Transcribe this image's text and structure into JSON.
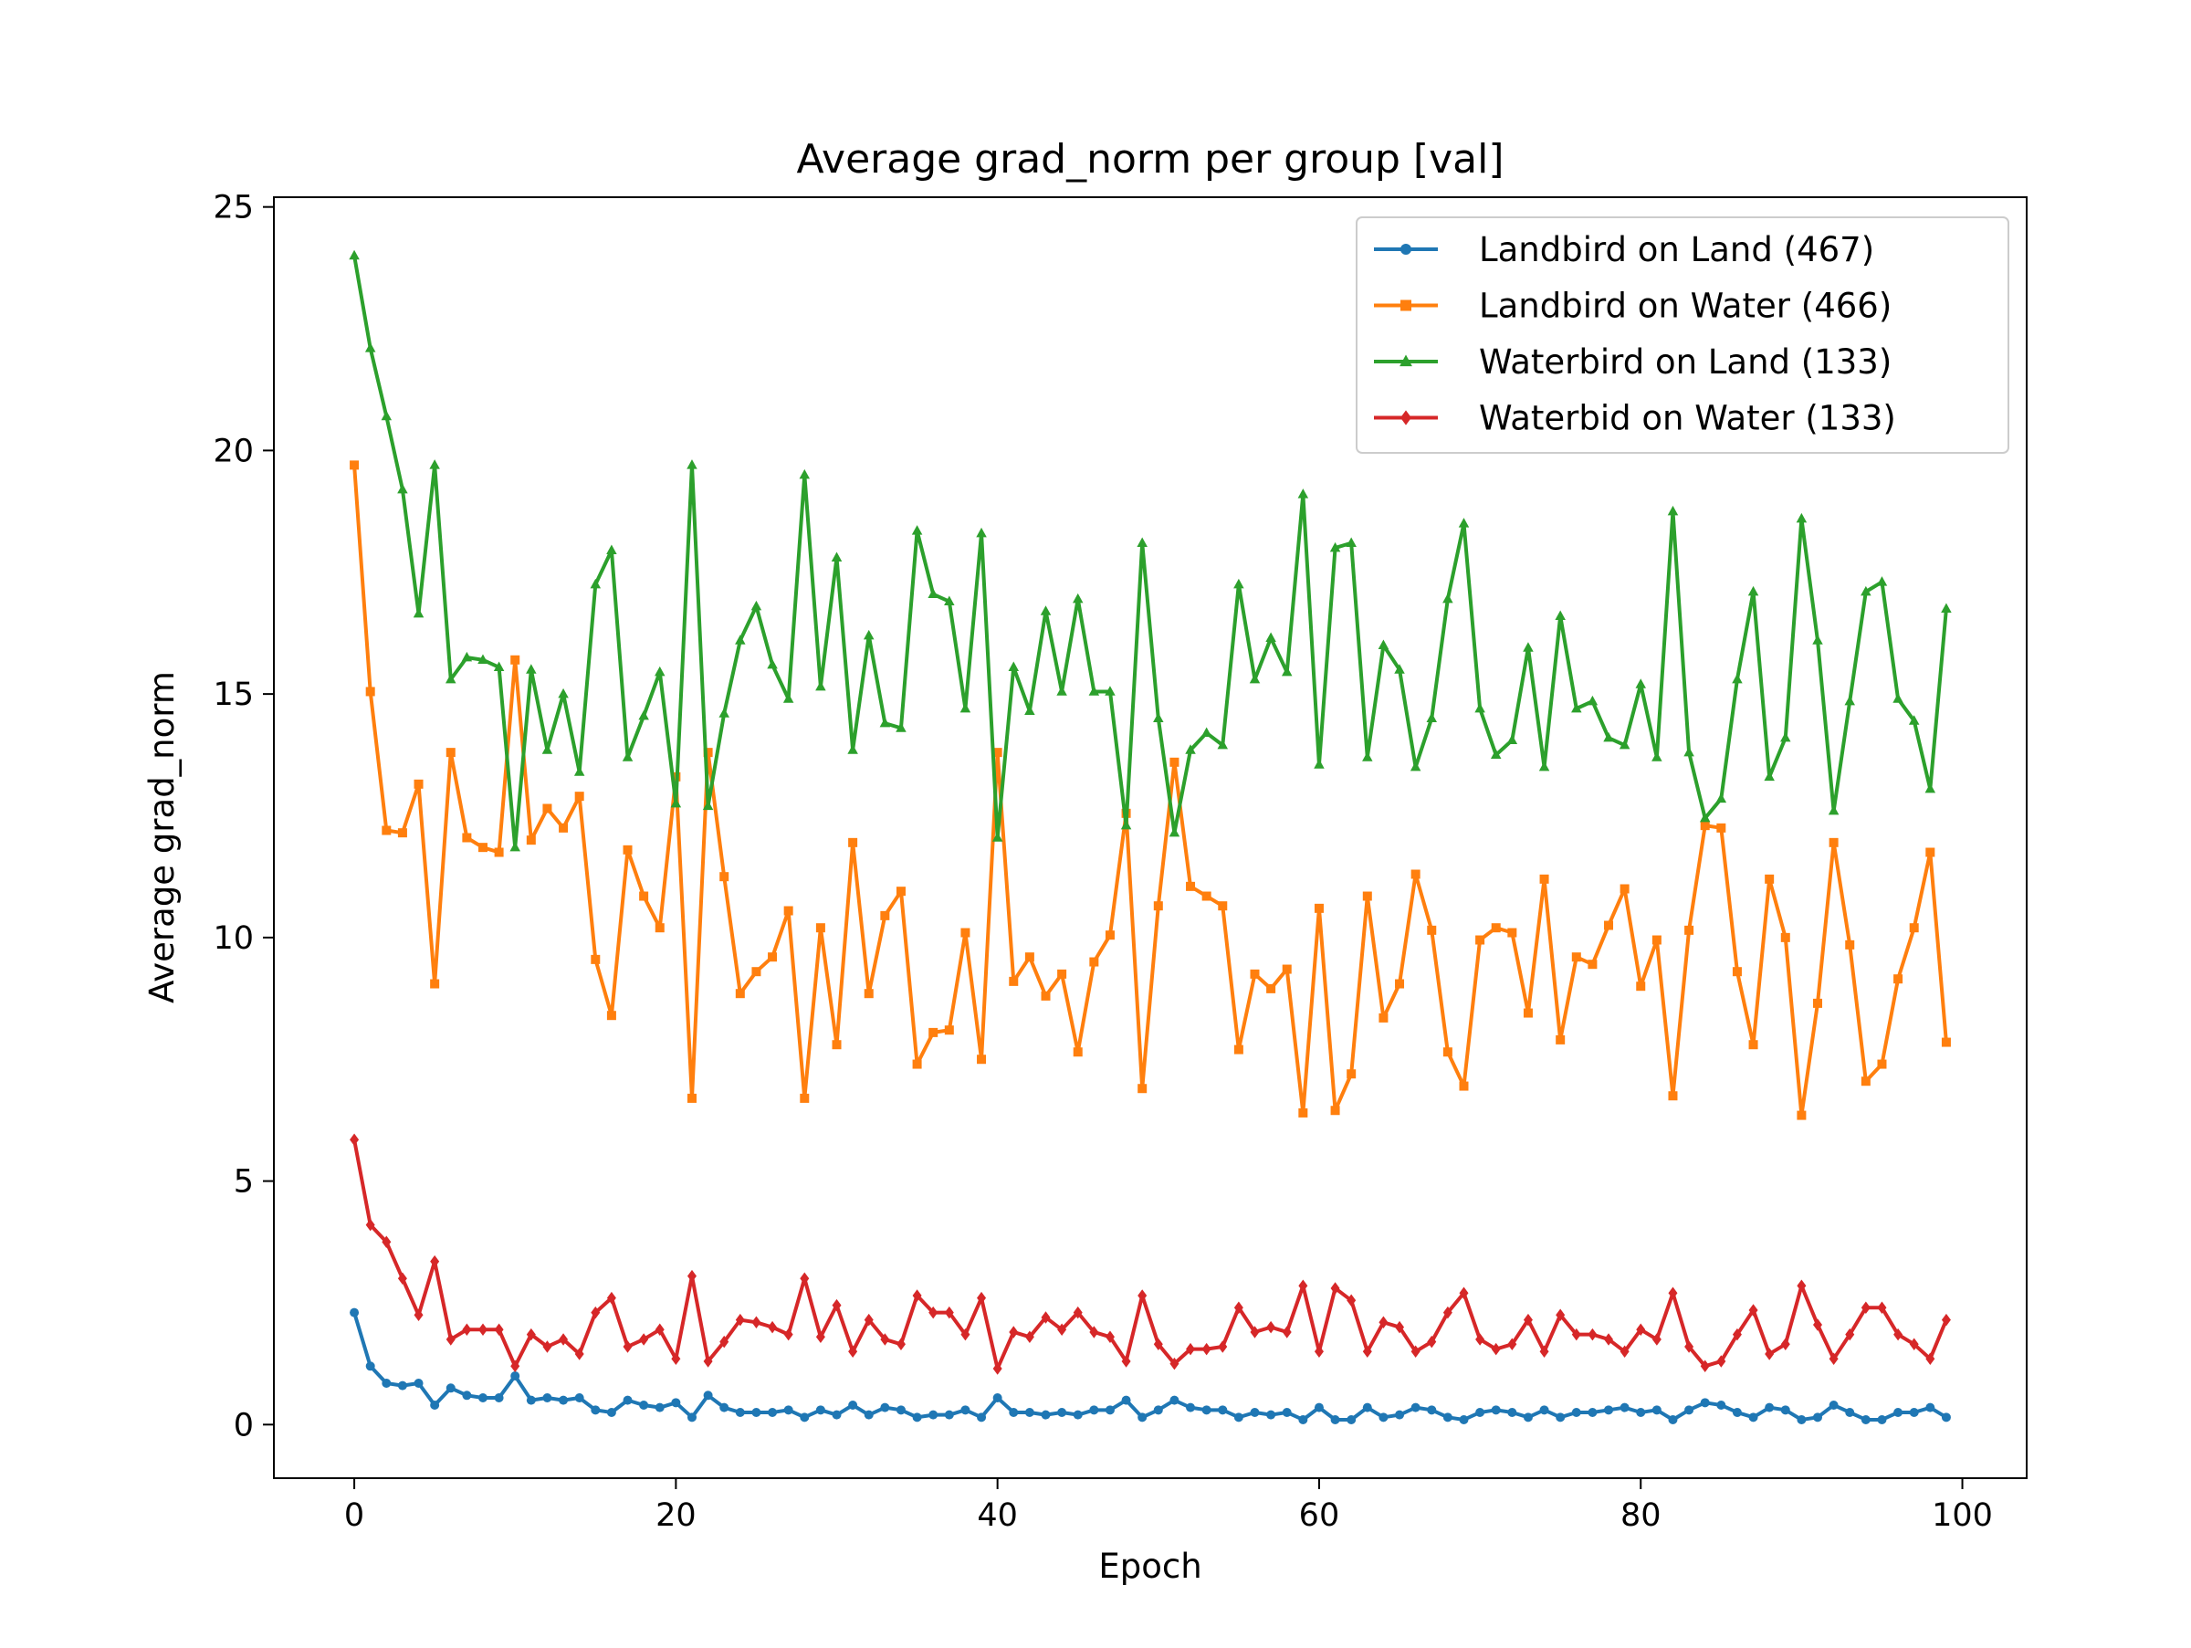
{
  "chart_data": {
    "type": "line",
    "title": "Average grad_norm per group [val]",
    "xlabel": "Epoch",
    "ylabel": "Average grad_norm",
    "xlim": [
      -5,
      104
    ],
    "ylim": [
      -1.1,
      25.2
    ],
    "xticks": [
      0,
      20,
      40,
      60,
      80,
      100
    ],
    "yticks": [
      0,
      5,
      10,
      15,
      20,
      25
    ],
    "xtick_labels": [
      "0",
      "20",
      "40",
      "60",
      "80",
      "100"
    ],
    "ytick_labels": [
      "0",
      "5",
      "10",
      "15",
      "20",
      "25"
    ],
    "grid": false,
    "legend_position": "top-right",
    "x": [
      0,
      1,
      2,
      3,
      4,
      5,
      6,
      7,
      8,
      9,
      10,
      11,
      12,
      13,
      14,
      15,
      16,
      17,
      18,
      19,
      20,
      21,
      22,
      23,
      24,
      25,
      26,
      27,
      28,
      29,
      30,
      31,
      32,
      33,
      34,
      35,
      36,
      37,
      38,
      39,
      40,
      41,
      42,
      43,
      44,
      45,
      46,
      47,
      48,
      49,
      50,
      51,
      52,
      53,
      54,
      55,
      56,
      57,
      58,
      59,
      60,
      61,
      62,
      63,
      64,
      65,
      66,
      67,
      68,
      69,
      70,
      71,
      72,
      73,
      74,
      75,
      76,
      77,
      78,
      79,
      80,
      81,
      82,
      83,
      84,
      85,
      86,
      87,
      88,
      89,
      90,
      91,
      92,
      93,
      94,
      95,
      96,
      97,
      98,
      99
    ],
    "series": [
      {
        "name": "Landbird on Land (467)",
        "color": "#1f77b4",
        "marker": "circle",
        "values": [
          2.3,
          1.2,
          0.85,
          0.8,
          0.85,
          0.4,
          0.75,
          0.6,
          0.55,
          0.55,
          1.0,
          0.5,
          0.55,
          0.5,
          0.55,
          0.3,
          0.25,
          0.5,
          0.4,
          0.35,
          0.45,
          0.15,
          0.6,
          0.35,
          0.25,
          0.25,
          0.25,
          0.3,
          0.15,
          0.3,
          0.2,
          0.4,
          0.2,
          0.35,
          0.3,
          0.15,
          0.2,
          0.2,
          0.3,
          0.15,
          0.55,
          0.25,
          0.25,
          0.2,
          0.25,
          0.2,
          0.3,
          0.3,
          0.5,
          0.15,
          0.3,
          0.5,
          0.35,
          0.3,
          0.3,
          0.15,
          0.25,
          0.2,
          0.25,
          0.1,
          0.35,
          0.1,
          0.1,
          0.35,
          0.15,
          0.2,
          0.35,
          0.3,
          0.15,
          0.1,
          0.25,
          0.3,
          0.25,
          0.15,
          0.3,
          0.15,
          0.25,
          0.25,
          0.3,
          0.35,
          0.25,
          0.3,
          0.1,
          0.3,
          0.45,
          0.4,
          0.25,
          0.15,
          0.35,
          0.3,
          0.1,
          0.15,
          0.4,
          0.25,
          0.1,
          0.1,
          0.25,
          0.25,
          0.35,
          0.15
        ]
      },
      {
        "name": "Landbird on Water (466)",
        "color": "#ff7f0e",
        "marker": "square",
        "values": [
          19.7,
          15.05,
          12.2,
          12.15,
          13.15,
          9.05,
          13.8,
          12.05,
          11.85,
          11.75,
          15.7,
          12.0,
          12.65,
          12.25,
          12.9,
          9.55,
          8.4,
          11.8,
          10.85,
          10.2,
          13.3,
          6.7,
          13.8,
          11.25,
          8.85,
          9.3,
          9.6,
          10.55,
          6.7,
          10.2,
          7.8,
          11.95,
          8.85,
          10.45,
          10.95,
          7.4,
          8.05,
          8.1,
          10.1,
          7.5,
          13.8,
          9.1,
          9.6,
          8.8,
          9.25,
          7.65,
          9.5,
          10.05,
          12.55,
          6.9,
          10.65,
          13.6,
          11.05,
          10.85,
          10.65,
          7.7,
          9.25,
          8.95,
          9.35,
          6.4,
          10.6,
          6.45,
          7.2,
          10.85,
          8.35,
          9.05,
          11.3,
          10.15,
          7.65,
          6.95,
          9.95,
          10.2,
          10.1,
          8.45,
          11.2,
          7.9,
          9.6,
          9.45,
          10.25,
          11.0,
          9.0,
          9.95,
          6.75,
          10.15,
          12.3,
          12.25,
          9.3,
          7.8,
          11.2,
          10.0,
          6.35,
          8.65,
          11.95,
          9.85,
          7.05,
          7.4,
          9.15,
          10.2,
          11.75,
          7.85
        ]
      },
      {
        "name": "Waterbird on Land (133)",
        "color": "#2ca02c",
        "marker": "triangle",
        "values": [
          24.0,
          22.1,
          20.7,
          19.2,
          16.65,
          19.7,
          15.3,
          15.75,
          15.7,
          15.55,
          11.85,
          15.5,
          13.85,
          15.0,
          13.4,
          17.25,
          17.95,
          13.7,
          14.55,
          15.45,
          12.75,
          19.7,
          12.7,
          14.6,
          16.1,
          16.8,
          15.6,
          14.9,
          19.5,
          15.15,
          17.8,
          13.85,
          16.2,
          14.4,
          14.3,
          18.35,
          17.05,
          16.9,
          14.7,
          18.3,
          12.05,
          15.55,
          14.65,
          16.7,
          15.05,
          16.95,
          15.05,
          15.05,
          12.3,
          18.1,
          14.5,
          12.15,
          13.85,
          14.2,
          13.95,
          17.25,
          15.3,
          16.15,
          15.45,
          19.1,
          13.55,
          18.0,
          18.1,
          13.7,
          16.0,
          15.5,
          13.5,
          14.5,
          16.95,
          18.5,
          14.7,
          13.75,
          14.05,
          15.95,
          13.5,
          16.6,
          14.7,
          14.85,
          14.1,
          13.95,
          15.2,
          13.7,
          18.75,
          13.8,
          12.45,
          12.85,
          15.3,
          17.1,
          13.3,
          14.1,
          18.6,
          16.1,
          12.6,
          14.85,
          17.1,
          17.3,
          14.9,
          14.45,
          13.05,
          16.75
        ]
      },
      {
        "name": "Waterbid on Water (133)",
        "color": "#d62728",
        "marker": "diamond",
        "values": [
          5.85,
          4.1,
          3.75,
          3.0,
          2.25,
          3.35,
          1.75,
          1.95,
          1.95,
          1.95,
          1.2,
          1.85,
          1.6,
          1.75,
          1.45,
          2.3,
          2.6,
          1.6,
          1.75,
          1.95,
          1.35,
          3.05,
          1.3,
          1.7,
          2.15,
          2.1,
          2.0,
          1.85,
          3.0,
          1.8,
          2.45,
          1.5,
          2.15,
          1.75,
          1.65,
          2.65,
          2.3,
          2.3,
          1.85,
          2.6,
          1.15,
          1.9,
          1.8,
          2.2,
          1.95,
          2.3,
          1.9,
          1.8,
          1.3,
          2.65,
          1.65,
          1.25,
          1.55,
          1.55,
          1.6,
          2.4,
          1.9,
          2.0,
          1.9,
          2.85,
          1.5,
          2.8,
          2.55,
          1.5,
          2.1,
          2.0,
          1.5,
          1.7,
          2.3,
          2.7,
          1.75,
          1.55,
          1.65,
          2.15,
          1.5,
          2.25,
          1.85,
          1.85,
          1.75,
          1.5,
          1.95,
          1.75,
          2.7,
          1.6,
          1.2,
          1.3,
          1.85,
          2.35,
          1.45,
          1.65,
          2.85,
          2.05,
          1.35,
          1.85,
          2.4,
          2.4,
          1.85,
          1.65,
          1.35,
          2.15
        ]
      }
    ]
  }
}
